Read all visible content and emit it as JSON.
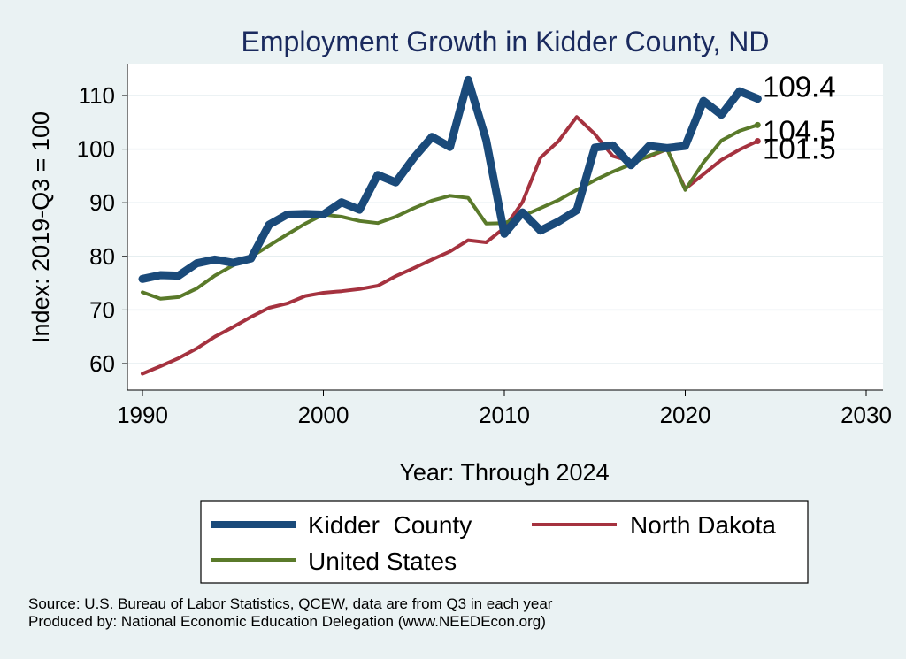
{
  "chart_data": {
    "type": "line",
    "title": "Employment Growth in Kidder County, ND",
    "xlabel": "Year: Through 2024",
    "ylabel": "Index: 2019-Q3 = 100",
    "xlim": [
      1990,
      2030
    ],
    "ylim": [
      55,
      116
    ],
    "xticks": [
      1990,
      2000,
      2010,
      2020,
      2030
    ],
    "yticks": [
      60,
      70,
      80,
      90,
      100,
      110
    ],
    "grid": true,
    "legend_position": "bottom",
    "x": [
      1990,
      1991,
      1992,
      1993,
      1994,
      1995,
      1996,
      1997,
      1998,
      1999,
      2000,
      2001,
      2002,
      2003,
      2004,
      2005,
      2006,
      2007,
      2008,
      2009,
      2010,
      2011,
      2012,
      2013,
      2014,
      2015,
      2016,
      2017,
      2018,
      2019,
      2020,
      2021,
      2022,
      2023,
      2024
    ],
    "series": [
      {
        "name": "Kidder  County",
        "color": "#1a4a7a",
        "end_label": "109.4",
        "values": [
          75.8,
          76.5,
          76.4,
          78.7,
          79.4,
          78.8,
          79.6,
          85.9,
          87.8,
          87.9,
          87.8,
          90.1,
          88.7,
          95.2,
          93.8,
          98.4,
          102.3,
          100.4,
          112.9,
          101.7,
          84.2,
          88.2,
          84.8,
          86.5,
          88.6,
          100.3,
          100.7,
          97.0,
          100.6,
          100.2,
          100.6,
          109.0,
          106.4,
          110.8,
          109.4
        ]
      },
      {
        "name": "North Dakota",
        "color": "#a5323f",
        "end_label": "101.5",
        "values": [
          58.1,
          59.5,
          61.0,
          62.8,
          65.0,
          66.8,
          68.7,
          70.4,
          71.2,
          72.6,
          73.2,
          73.5,
          73.9,
          74.5,
          76.3,
          77.8,
          79.4,
          80.9,
          83.0,
          82.6,
          85.3,
          90.1,
          98.4,
          101.5,
          106.0,
          102.8,
          98.7,
          97.7,
          98.6,
          100.0,
          92.6,
          95.3,
          98.0,
          99.9,
          101.5
        ]
      },
      {
        "name": "United States",
        "color": "#5a7a2a",
        "end_label": "104.5",
        "values": [
          73.3,
          72.1,
          72.4,
          74.0,
          76.4,
          78.3,
          79.9,
          82.0,
          84.1,
          86.1,
          87.8,
          87.4,
          86.6,
          86.2,
          87.4,
          89.0,
          90.4,
          91.3,
          90.9,
          86.1,
          86.2,
          87.5,
          89.0,
          90.5,
          92.4,
          94.2,
          95.8,
          97.2,
          98.8,
          100.0,
          92.4,
          97.5,
          101.6,
          103.4,
          104.5
        ]
      }
    ]
  },
  "notes": {
    "source": "Source: U.S. Bureau of Labor Statistics, QCEW, data are from Q3 in each year",
    "produced": "Produced by: National Economic Education Delegation (www.NEEDEcon.org)"
  }
}
